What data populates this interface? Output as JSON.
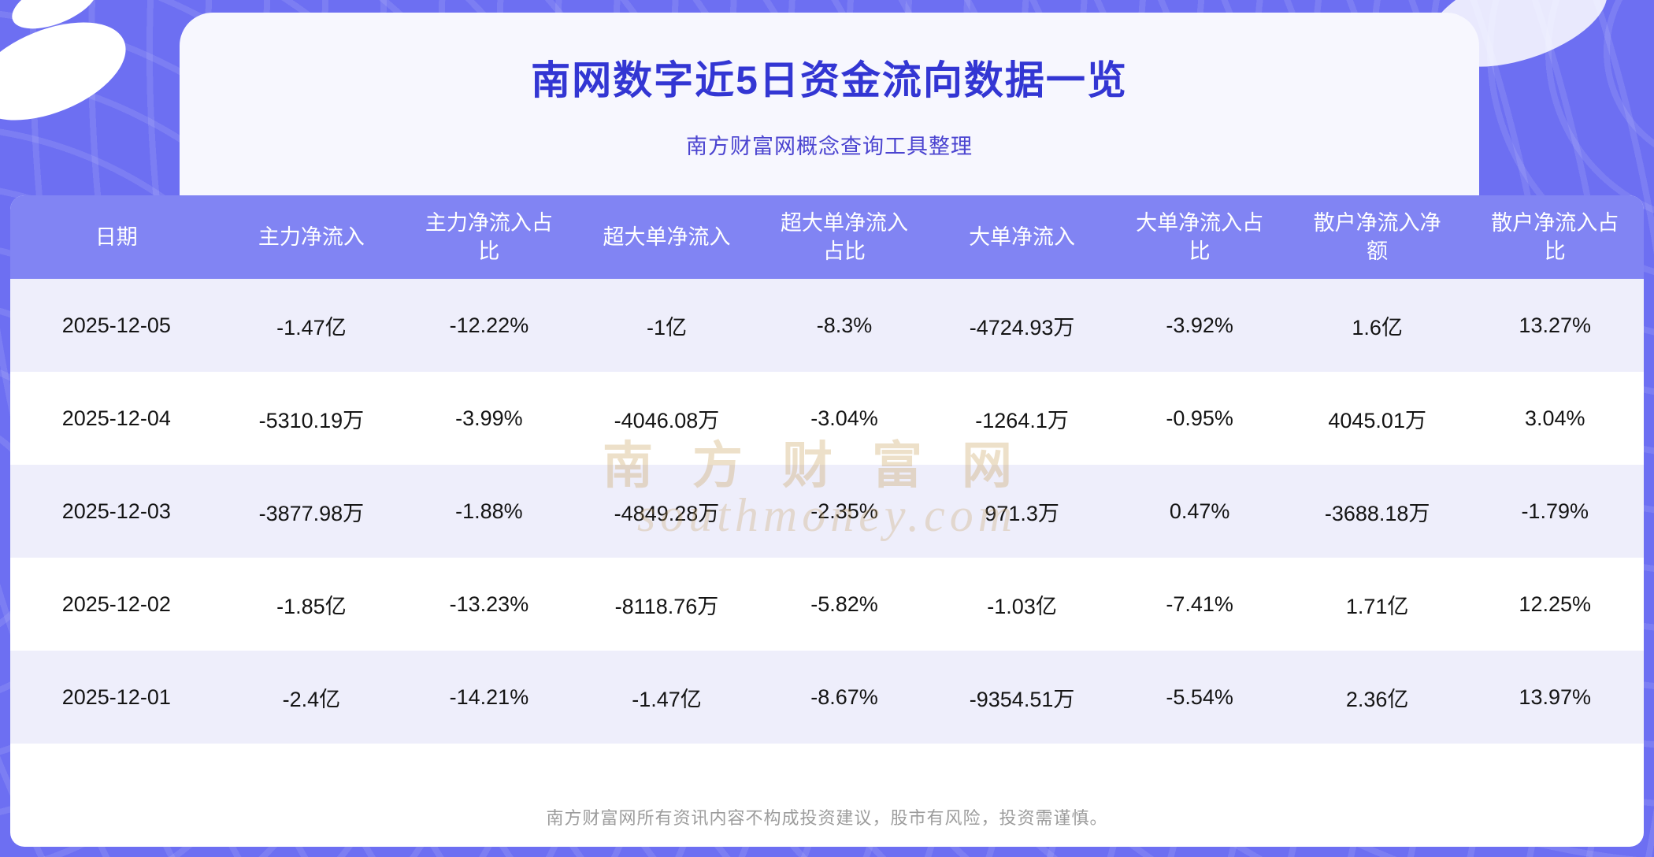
{
  "page": {
    "title": "南网数字近5日资金流向数据一览",
    "subtitle": "南方财富网概念查询工具整理",
    "footer": "南方财富网所有资讯内容不构成投资建议，股市有风险，投资需谨慎。"
  },
  "watermark": {
    "cn": "南方财富网",
    "en": "southmoney.com"
  },
  "colors": {
    "banner_background": "#6d6ff2",
    "panel_background": "#f7f7fe",
    "title_text": "#3336d3",
    "table_header_background": "#8184f3",
    "table_row_alt_background": "#eeeefb",
    "watermark_gold": "#c69e58",
    "footer_text": "#9c9c9c"
  },
  "chart_data": {
    "type": "table",
    "title": "南网数字近5日资金流向数据一览",
    "subtitle": "南方财富网概念查询工具整理",
    "columns": [
      "日期",
      "主力净流入",
      "主力净流入占比",
      "超大单净流入",
      "超大单净流入占比",
      "大单净流入",
      "大单净流入占比",
      "散户净流入净额",
      "散户净流入占比"
    ],
    "rows": [
      [
        "2025-12-05",
        "-1.47亿",
        "-12.22%",
        "-1亿",
        "-8.3%",
        "-4724.93万",
        "-3.92%",
        "1.6亿",
        "13.27%"
      ],
      [
        "2025-12-04",
        "-5310.19万",
        "-3.99%",
        "-4046.08万",
        "-3.04%",
        "-1264.1万",
        "-0.95%",
        "4045.01万",
        "3.04%"
      ],
      [
        "2025-12-03",
        "-3877.98万",
        "-1.88%",
        "-4849.28万",
        "-2.35%",
        "971.3万",
        "0.47%",
        "-3688.18万",
        "-1.79%"
      ],
      [
        "2025-12-02",
        "-1.85亿",
        "-13.23%",
        "-8118.76万",
        "-5.82%",
        "-1.03亿",
        "-7.41%",
        "1.71亿",
        "12.25%"
      ],
      [
        "2025-12-01",
        "-2.4亿",
        "-14.21%",
        "-1.47亿",
        "-8.67%",
        "-9354.51万",
        "-5.54%",
        "2.36亿",
        "13.97%"
      ]
    ]
  }
}
